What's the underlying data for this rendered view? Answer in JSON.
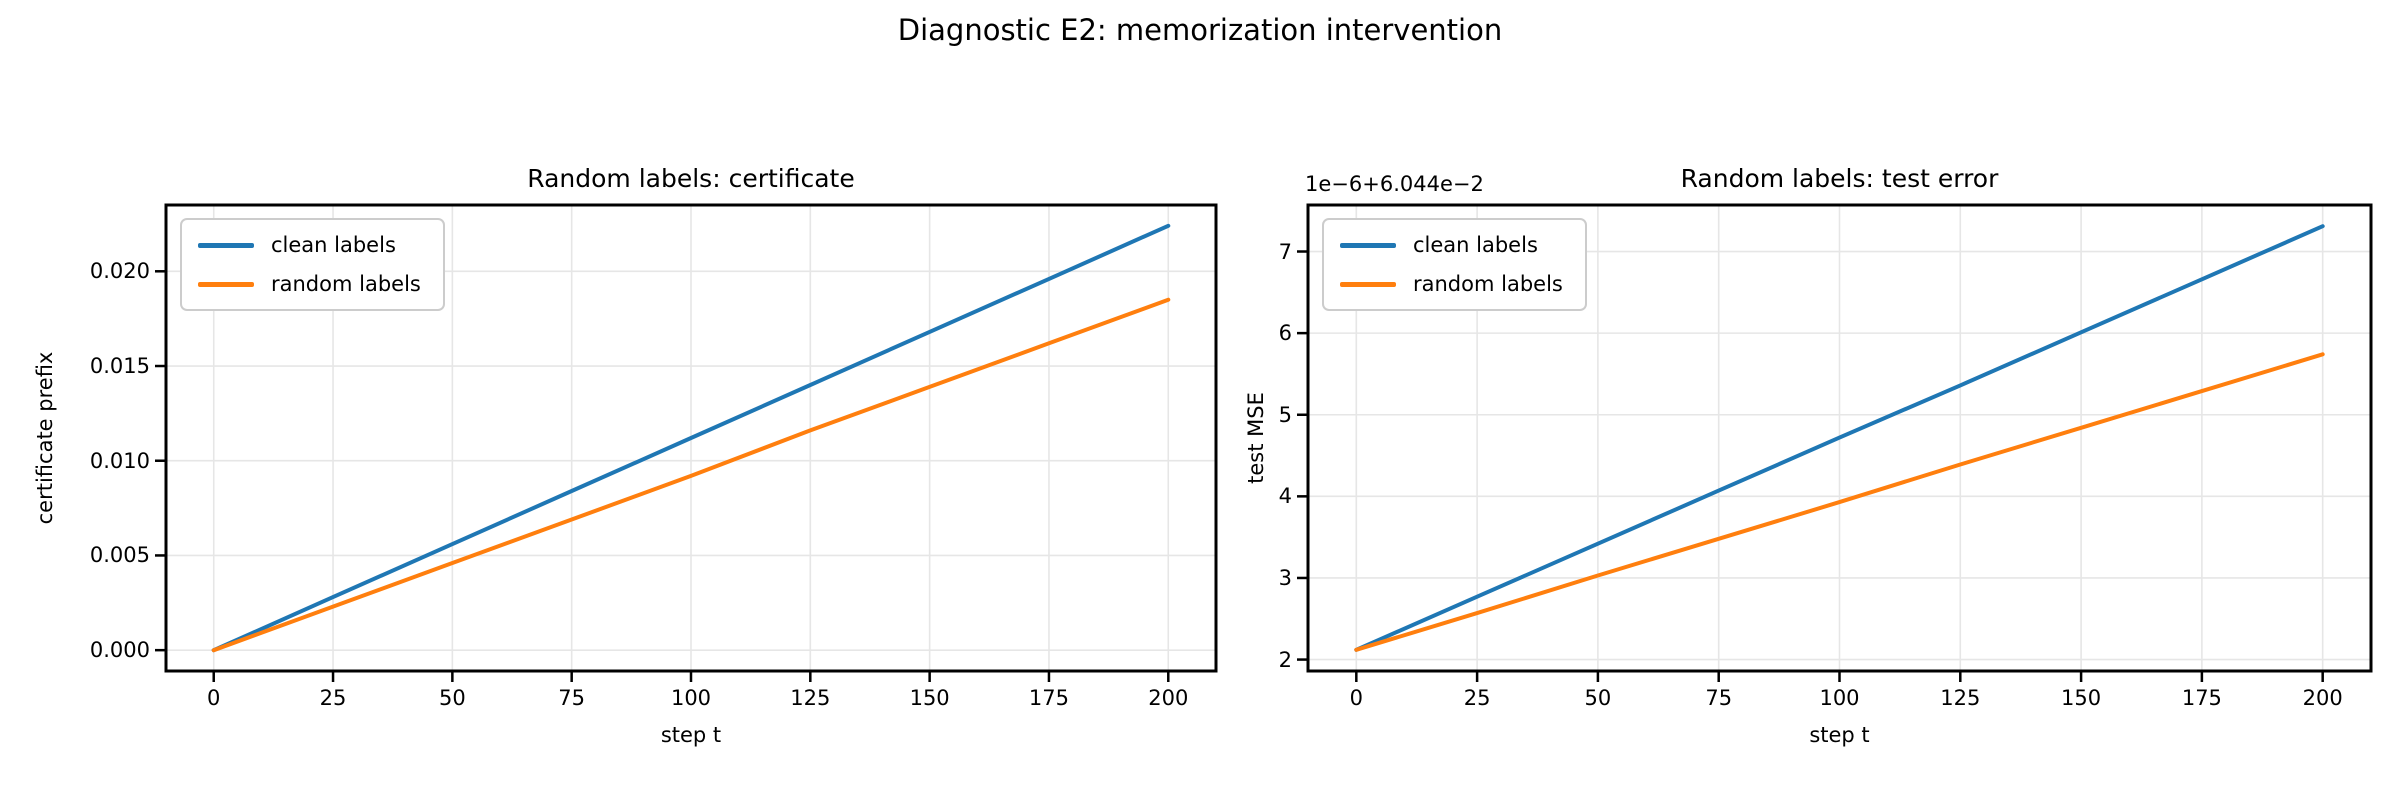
{
  "figure": {
    "suptitle": "Diagnostic E2: memorization intervention"
  },
  "style": {
    "background": "#ffffff",
    "text_color": "#000000",
    "grid_color": "#e6e6e6",
    "spine_color": "#000000",
    "legend_border": "#cccccc",
    "series_blue": "#1f77b4",
    "series_orange": "#ff7f0e"
  },
  "chart_data": [
    {
      "type": "line",
      "title": "Random labels: certificate",
      "xlabel": "step t",
      "ylabel": "certificate prefix",
      "grid": true,
      "legend": {
        "position": "upper left",
        "entries": [
          "clean labels",
          "random labels"
        ]
      },
      "x": [
        0,
        25,
        50,
        75,
        100,
        125,
        150,
        175,
        200
      ],
      "series": [
        {
          "name": "clean labels",
          "color": "#1f77b4",
          "values": [
            0.0,
            0.0028,
            0.0056,
            0.0084,
            0.0112,
            0.014,
            0.0168,
            0.0196,
            0.0224
          ]
        },
        {
          "name": "random labels",
          "color": "#ff7f0e",
          "values": [
            0.0,
            0.0023,
            0.0046,
            0.0069,
            0.0092,
            0.0116,
            0.0139,
            0.0162,
            0.0185
          ]
        }
      ],
      "xlim": [
        -10,
        210
      ],
      "ylim": [
        -0.0011,
        0.0235
      ],
      "xticks": {
        "values": [
          0,
          25,
          50,
          75,
          100,
          125,
          150,
          175,
          200
        ],
        "labels": [
          "0",
          "25",
          "50",
          "75",
          "100",
          "125",
          "150",
          "175",
          "200"
        ]
      },
      "yticks": {
        "values": [
          0.0,
          0.005,
          0.01,
          0.015,
          0.02
        ],
        "labels": [
          "0.000",
          "0.005",
          "0.010",
          "0.015",
          "0.020"
        ]
      }
    },
    {
      "type": "line",
      "title": "Random labels: test error",
      "xlabel": "step t",
      "ylabel": "test MSE",
      "offset_text": "1e−6+6.044e−2",
      "y_unit_note": "axis values are offset units: actual test MSE = 6.044e-2 + value × 1e-6",
      "grid": true,
      "legend": {
        "position": "upper left",
        "entries": [
          "clean labels",
          "random labels"
        ]
      },
      "x": [
        0,
        25,
        50,
        75,
        100,
        125,
        150,
        175,
        200
      ],
      "series": [
        {
          "name": "clean labels",
          "color": "#1f77b4",
          "values": [
            2.12,
            2.77,
            3.42,
            4.07,
            4.72,
            5.36,
            6.01,
            6.66,
            7.31
          ]
        },
        {
          "name": "random labels",
          "color": "#ff7f0e",
          "values": [
            2.12,
            2.57,
            3.03,
            3.48,
            3.93,
            4.39,
            4.84,
            5.29,
            5.74
          ]
        }
      ],
      "xlim": [
        -10,
        210
      ],
      "ylim": [
        1.86,
        7.57
      ],
      "xticks": {
        "values": [
          0,
          25,
          50,
          75,
          100,
          125,
          150,
          175,
          200
        ],
        "labels": [
          "0",
          "25",
          "50",
          "75",
          "100",
          "125",
          "150",
          "175",
          "200"
        ]
      },
      "yticks": {
        "values": [
          2,
          3,
          4,
          5,
          6,
          7
        ],
        "labels": [
          "2",
          "3",
          "4",
          "5",
          "6",
          "7"
        ]
      }
    }
  ]
}
